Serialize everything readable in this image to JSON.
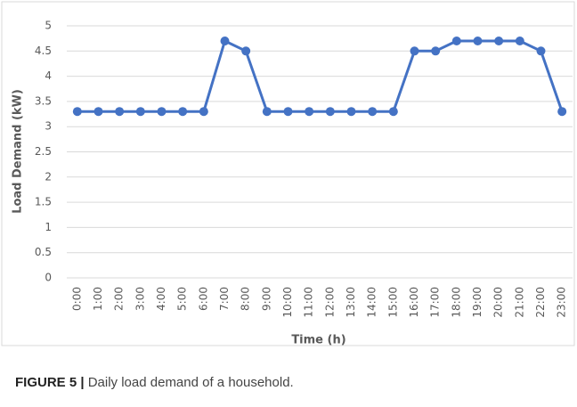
{
  "chart_data": {
    "type": "line",
    "y_label": "Load Demand (kW)",
    "x_label": "Time (h)",
    "categories": [
      "0:00",
      "1:00",
      "2:00",
      "3:00",
      "4:00",
      "5:00",
      "6:00",
      "7:00",
      "8:00",
      "9:00",
      "10:00",
      "11:00",
      "12:00",
      "13:00",
      "14:00",
      "15:00",
      "16:00",
      "17:00",
      "18:00",
      "19:00",
      "20:00",
      "21:00",
      "22:00",
      "23:00"
    ],
    "series": [
      {
        "color": "#4472c4",
        "values": [
          3.3,
          3.3,
          3.3,
          3.3,
          3.3,
          3.3,
          3.3,
          4.7,
          4.5,
          3.3,
          3.3,
          3.3,
          3.3,
          3.3,
          3.3,
          3.3,
          4.5,
          4.5,
          4.7,
          4.7,
          4.7,
          4.7,
          4.5,
          3.3
        ]
      }
    ],
    "ylim": [
      0,
      5
    ],
    "yticks": [
      0,
      0.5,
      1,
      1.5,
      2,
      2.5,
      3,
      3.5,
      4,
      4.5,
      5
    ],
    "grid": true
  },
  "caption": {
    "label": "FIGURE 5 |",
    "text": "Daily load demand of a household."
  }
}
